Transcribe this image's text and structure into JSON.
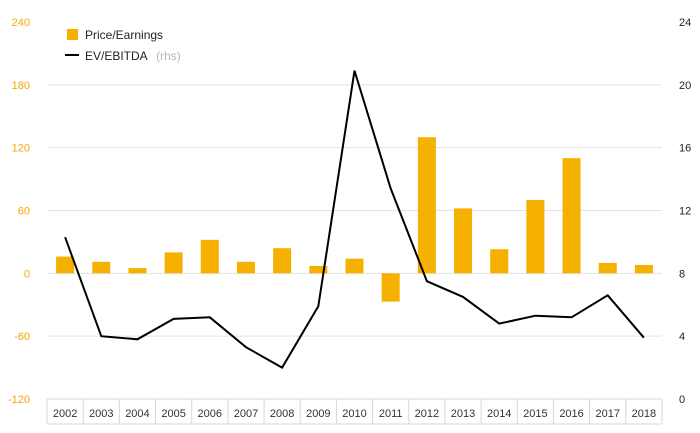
{
  "chart_data": {
    "type": "bar+line",
    "categories": [
      "2002",
      "2003",
      "2004",
      "2005",
      "2006",
      "2007",
      "2008",
      "2009",
      "2010",
      "2011",
      "2012",
      "2013",
      "2014",
      "2015",
      "2016",
      "2017",
      "2018"
    ],
    "series": [
      {
        "name": "Price/Earnings",
        "type": "bar",
        "axis": "left",
        "color": "#f5b000",
        "values": [
          16,
          11,
          5,
          20,
          32,
          11,
          24,
          7,
          14,
          -27,
          130,
          62,
          23,
          70,
          110,
          10,
          8
        ]
      },
      {
        "name": "EV/EBITDA",
        "name_suffix": "(rhs)",
        "type": "line",
        "axis": "right",
        "color": "#000000",
        "values": [
          10.3,
          4.0,
          3.8,
          5.1,
          5.2,
          3.3,
          2.0,
          5.9,
          20.9,
          13.4,
          7.5,
          6.5,
          4.8,
          5.3,
          5.2,
          6.6,
          3.9
        ]
      }
    ],
    "y_left": {
      "min": -120,
      "max": 240,
      "ticks": [
        "240",
        "180",
        "120",
        "60",
        "0",
        "-60",
        "-120"
      ]
    },
    "y_right": {
      "min": 0,
      "max": 24,
      "ticks": [
        "24",
        "20",
        "16",
        "12",
        "8",
        "4",
        "0"
      ]
    },
    "grid": true,
    "legend_position": "top-left"
  }
}
